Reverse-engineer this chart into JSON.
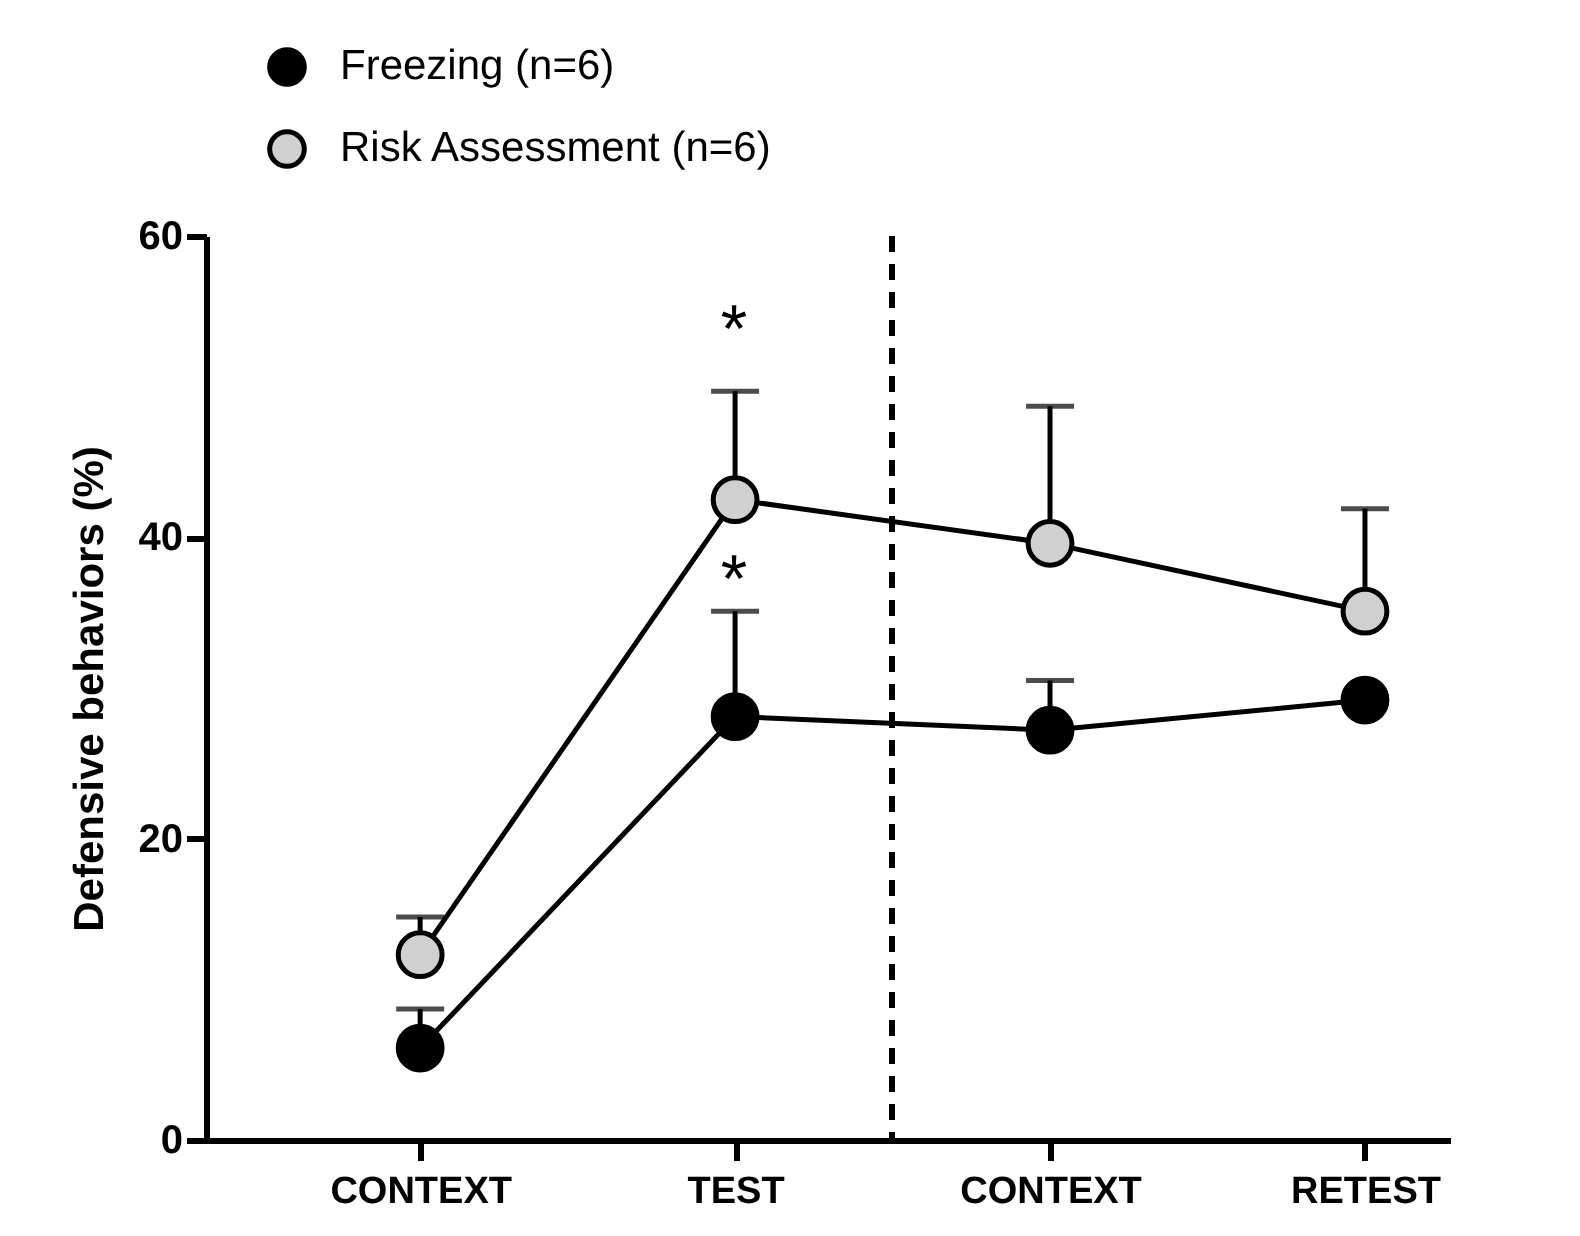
{
  "chart_data": {
    "type": "line",
    "ylabel": "Defensive behaviors (%)",
    "categories": [
      "CONTEXT",
      "TEST",
      "CONTEXT",
      "RETEST"
    ],
    "series": [
      {
        "name": "Freezing (n=6)",
        "color": "#000000",
        "values": [
          6.1,
          28.1,
          27.2,
          29.2
        ],
        "errors": [
          [
            6.1,
            8.7
          ],
          [
            28.1,
            35.1
          ],
          [
            27.2,
            30.5
          ],
          null
        ]
      },
      {
        "name": "Risk Assessment (n=6)",
        "color": "#d0d0d0",
        "values": [
          12.3,
          42.5,
          39.6,
          35.1
        ],
        "errors": [
          [
            12.3,
            14.8
          ],
          [
            42.5,
            49.7
          ],
          [
            39.6,
            48.7
          ],
          [
            35.1,
            41.9
          ]
        ]
      }
    ],
    "ylim": [
      0,
      60
    ],
    "yticks": [
      0,
      20,
      40,
      60
    ],
    "grid": false,
    "legend": "top left",
    "marker": "circle",
    "line_style": "solid",
    "annotations": [
      "*",
      "*"
    ]
  }
}
